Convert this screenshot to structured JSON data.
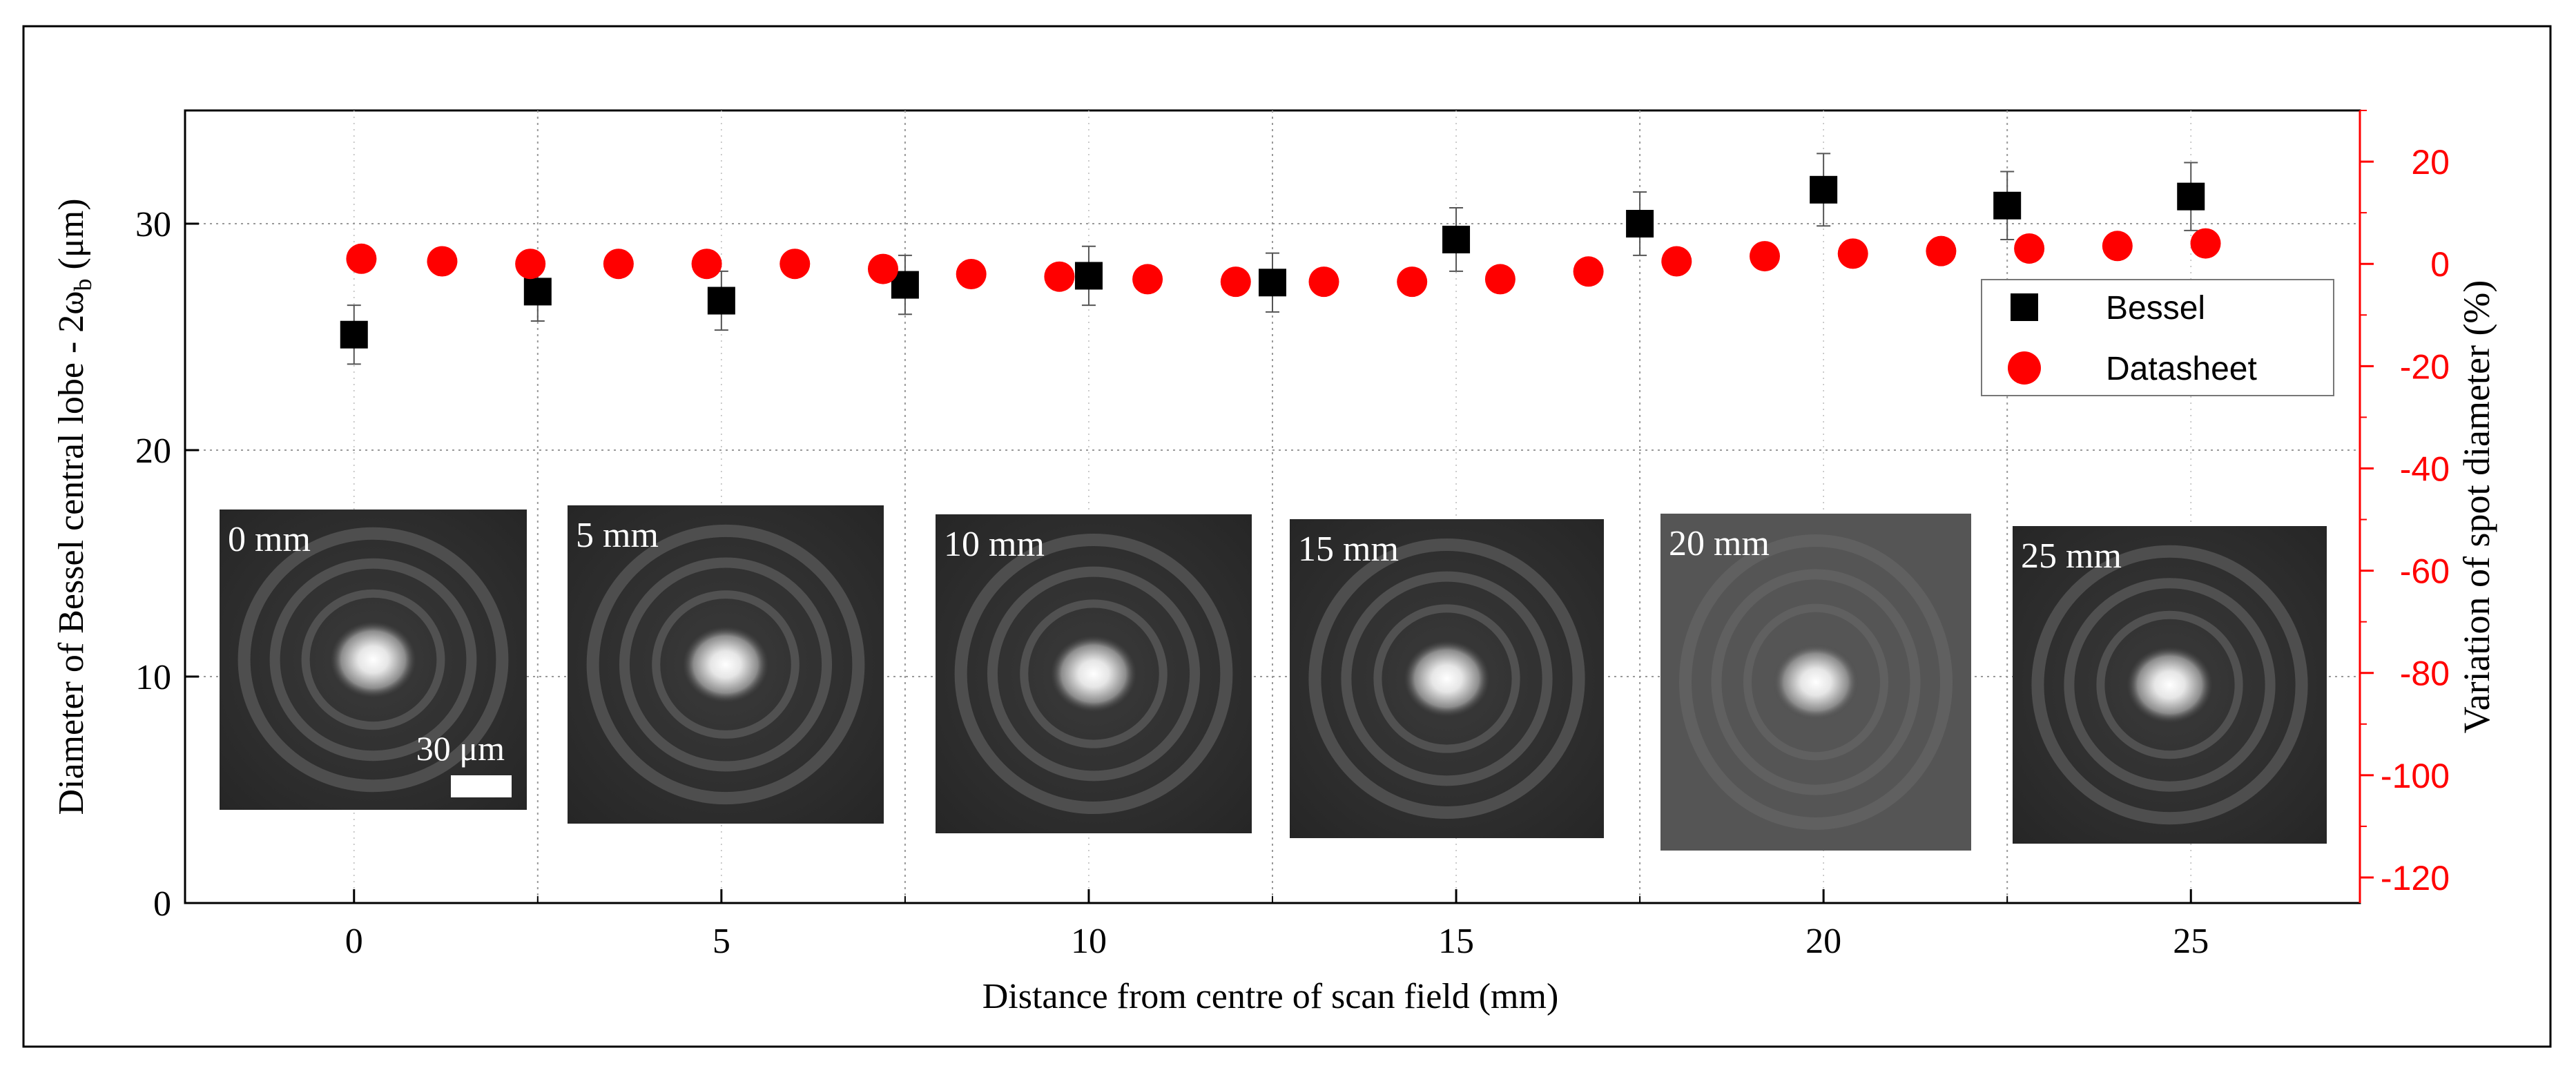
{
  "chart_data": {
    "type": "scatter",
    "xlabel": "Distance from centre of scan field (mm)",
    "ylabel_left": "Diameter of Bessel central lobe - 2ω",
    "ylabel_left_sub": "b",
    "ylabel_left_unit": " (μm)",
    "ylabel_right": "Variation of spot diameter (%)",
    "xlim": [
      -2.3,
      27.3
    ],
    "ylim_left": [
      0,
      35
    ],
    "ylim_right": [
      -125,
      30
    ],
    "x_ticks": [
      0,
      5,
      10,
      15,
      20,
      25
    ],
    "y_left_ticks": [
      0,
      10,
      20,
      30
    ],
    "y_right_ticks": [
      20,
      0,
      -20,
      -40,
      -60,
      -80,
      -100,
      -120
    ],
    "grid_x": [
      2.5,
      7.5,
      12.5,
      17.5,
      22.5
    ],
    "grid_y_left": [
      10,
      20,
      30
    ],
    "grid": true,
    "legend_position": "top-right",
    "series": [
      {
        "name": "Bessel",
        "axis": "left",
        "marker": "square",
        "color": "#000000",
        "x": [
          0,
          2.5,
          5,
          7.5,
          10,
          12.5,
          15,
          17.5,
          20,
          22.5,
          25
        ],
        "y": [
          25.1,
          27.0,
          26.6,
          27.3,
          27.7,
          27.4,
          29.3,
          30.0,
          31.5,
          30.8,
          31.2
        ],
        "yerr": [
          1.3,
          1.3,
          1.3,
          1.3,
          1.3,
          1.3,
          1.4,
          1.4,
          1.6,
          1.5,
          1.5
        ]
      },
      {
        "name": "Datasheet",
        "axis": "right",
        "marker": "circle",
        "color": "#ff0000",
        "x": [
          0.1,
          1.2,
          2.4,
          3.6,
          4.8,
          6.0,
          7.2,
          8.4,
          9.6,
          10.8,
          12.0,
          13.2,
          14.4,
          15.6,
          16.8,
          18.0,
          19.2,
          20.4,
          21.6,
          22.8,
          24.0,
          25.2
        ],
        "y": [
          1,
          0.5,
          0,
          0,
          0,
          0,
          -1,
          -2,
          -2.5,
          -3,
          -3.5,
          -3.5,
          -3.5,
          -3,
          -1.5,
          0.5,
          1.5,
          2,
          2.5,
          3,
          3.5,
          4
        ]
      }
    ],
    "insets": [
      {
        "label": "0 mm",
        "scale_bar_label": "30 μm"
      },
      {
        "label": "5 mm"
      },
      {
        "label": "10 mm"
      },
      {
        "label": "15 mm"
      },
      {
        "label": "20 mm"
      },
      {
        "label": "25 mm"
      }
    ],
    "colors": {
      "right_axis": "#ff0000",
      "grid": "#999999",
      "frame": "#000000"
    }
  }
}
